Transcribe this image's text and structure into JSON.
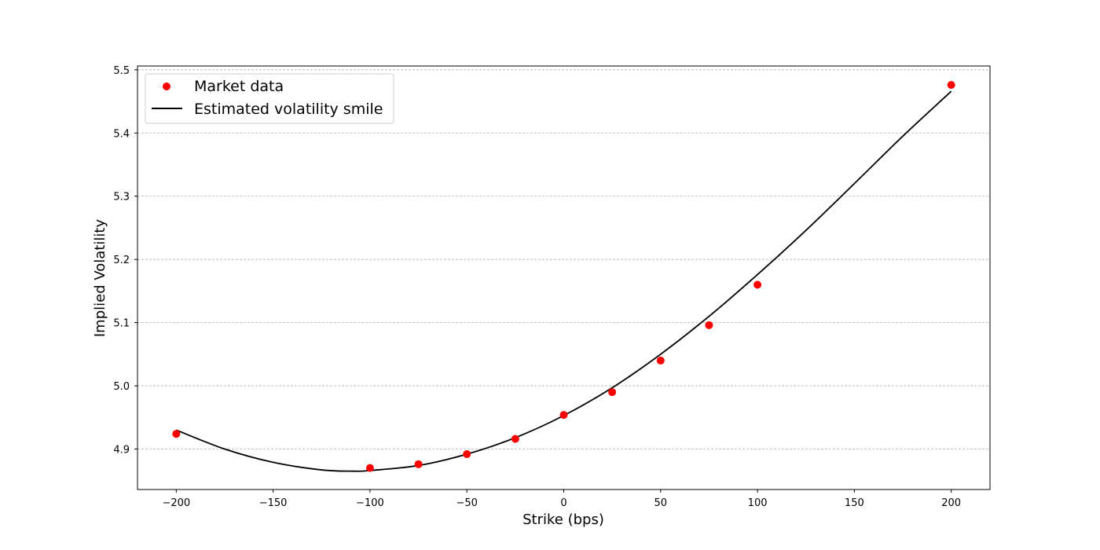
{
  "chart_data": {
    "type": "scatter",
    "title": "",
    "xlabel": "Strike (bps)",
    "ylabel": "Implied Volatility",
    "xlim": [
      -220,
      220
    ],
    "ylim": [
      4.836,
      5.506
    ],
    "xticks": [
      -200,
      -150,
      -100,
      -50,
      0,
      50,
      100,
      150,
      200
    ],
    "xtick_labels": [
      "−200",
      "−150",
      "−100",
      "−50",
      "0",
      "50",
      "100",
      "150",
      "200"
    ],
    "yticks": [
      4.9,
      5.0,
      5.1,
      5.2,
      5.3,
      5.4,
      5.5
    ],
    "ytick_labels": [
      "4.9",
      "5.0",
      "5.1",
      "5.2",
      "5.3",
      "5.4",
      "5.5"
    ],
    "grid": "horizontal dashed",
    "legend_position": "top-left",
    "series": [
      {
        "name": "Market data",
        "kind": "scatter",
        "color": "#ff0000",
        "x": [
          -200,
          -100,
          -75,
          -50,
          -25,
          0,
          25,
          50,
          75,
          100,
          200
        ],
        "y": [
          4.924,
          4.87,
          4.876,
          4.892,
          4.916,
          4.954,
          4.99,
          5.04,
          5.096,
          5.16,
          5.476
        ]
      },
      {
        "name": "Estimated volatility smile",
        "kind": "line",
        "color": "#000000",
        "x": [
          -200,
          -175,
          -150,
          -125,
          -108,
          -100,
          -75,
          -50,
          -25,
          0,
          25,
          50,
          75,
          100,
          125,
          150,
          175,
          200
        ],
        "y": [
          4.93,
          4.9,
          4.879,
          4.867,
          4.865,
          4.866,
          4.874,
          4.892,
          4.918,
          4.953,
          4.997,
          5.05,
          5.11,
          5.176,
          5.246,
          5.32,
          5.395,
          5.466
        ]
      }
    ]
  }
}
